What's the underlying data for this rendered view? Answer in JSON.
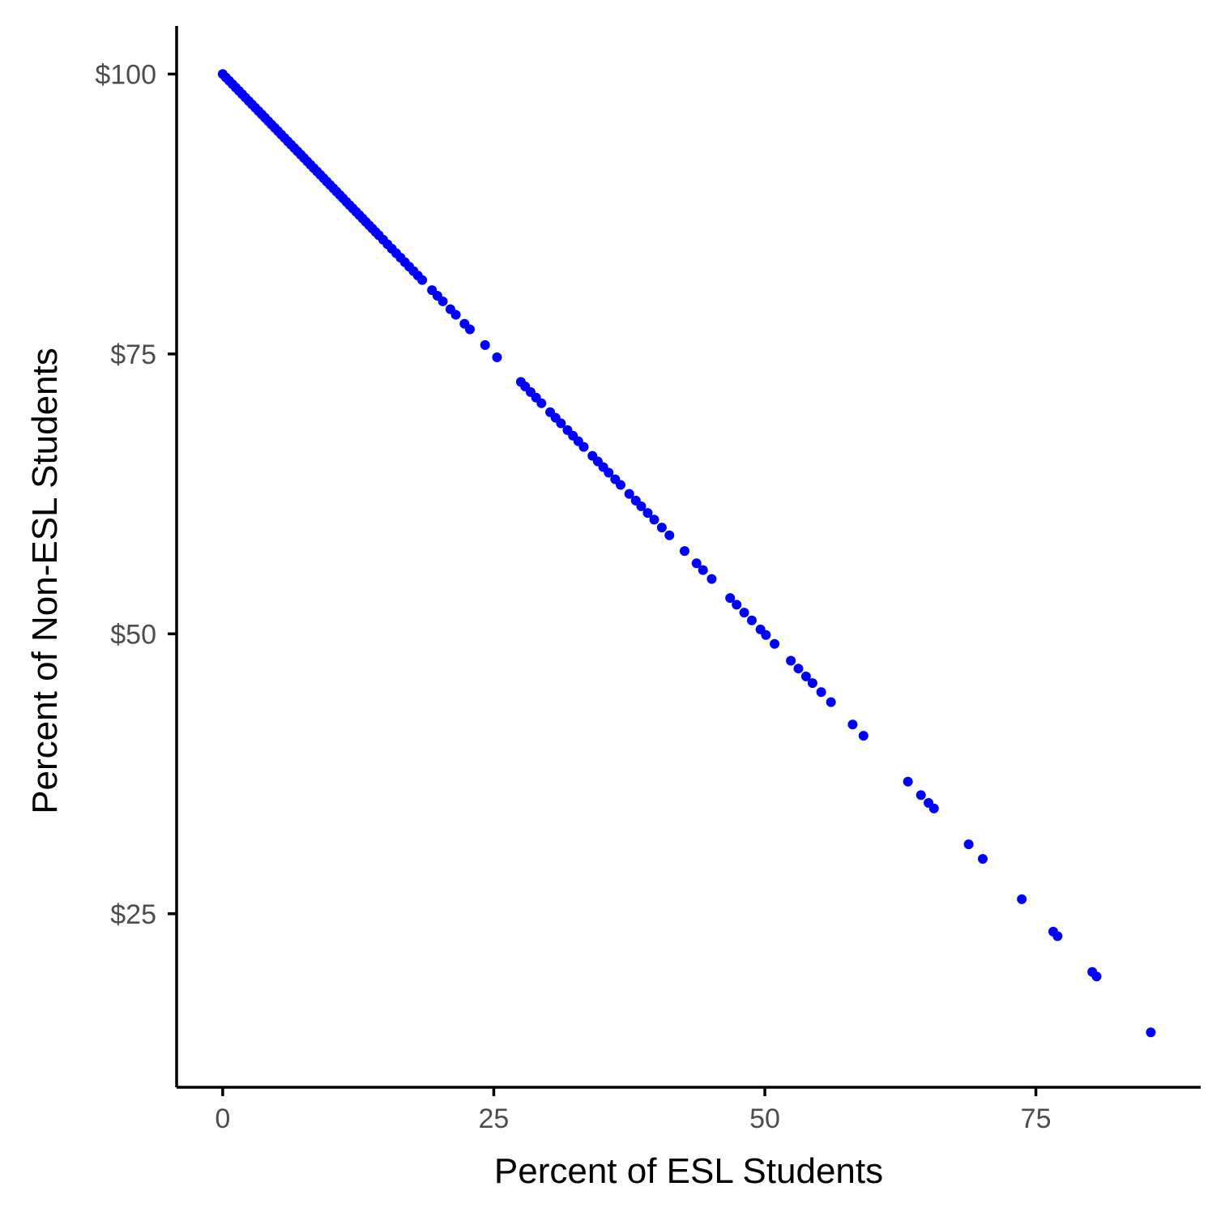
{
  "chart_data": {
    "type": "scatter",
    "xlabel": "Percent of ESL Students",
    "ylabel": "Percent of Non-ESL Students",
    "xlim": [
      -4.25,
      90.2
    ],
    "ylim": [
      9.5,
      104.3
    ],
    "x_ticks": [
      {
        "value": 0,
        "label": "0"
      },
      {
        "value": 25,
        "label": "25"
      },
      {
        "value": 50,
        "label": "50"
      },
      {
        "value": 75,
        "label": "75"
      }
    ],
    "y_ticks": [
      {
        "value": 25,
        "label": "$25"
      },
      {
        "value": 50,
        "label": "$50"
      },
      {
        "value": 75,
        "label": "$75"
      },
      {
        "value": 100,
        "label": "$100"
      }
    ],
    "grid": false,
    "legend": "none",
    "point_color": "#0000ff",
    "points": [
      {
        "x": 0.0,
        "y": 100.0
      },
      {
        "x": 0.3,
        "y": 99.7
      },
      {
        "x": 0.6,
        "y": 99.4
      },
      {
        "x": 0.9,
        "y": 99.1
      },
      {
        "x": 1.2,
        "y": 98.8
      },
      {
        "x": 1.5,
        "y": 98.5
      },
      {
        "x": 1.8,
        "y": 98.2
      },
      {
        "x": 2.1,
        "y": 97.9
      },
      {
        "x": 2.4,
        "y": 97.6
      },
      {
        "x": 2.7,
        "y": 97.3
      },
      {
        "x": 3.0,
        "y": 97.0
      },
      {
        "x": 3.3,
        "y": 96.7
      },
      {
        "x": 3.6,
        "y": 96.4
      },
      {
        "x": 3.9,
        "y": 96.1
      },
      {
        "x": 4.2,
        "y": 95.8
      },
      {
        "x": 4.5,
        "y": 95.5
      },
      {
        "x": 4.8,
        "y": 95.2
      },
      {
        "x": 5.1,
        "y": 94.9
      },
      {
        "x": 5.4,
        "y": 94.6
      },
      {
        "x": 5.7,
        "y": 94.3
      },
      {
        "x": 6.0,
        "y": 94.0
      },
      {
        "x": 6.3,
        "y": 93.7
      },
      {
        "x": 6.6,
        "y": 93.4
      },
      {
        "x": 6.9,
        "y": 93.1
      },
      {
        "x": 7.2,
        "y": 92.8
      },
      {
        "x": 7.5,
        "y": 92.5
      },
      {
        "x": 7.8,
        "y": 92.2
      },
      {
        "x": 8.1,
        "y": 91.9
      },
      {
        "x": 8.4,
        "y": 91.6
      },
      {
        "x": 8.7,
        "y": 91.3
      },
      {
        "x": 9.0,
        "y": 91.0
      },
      {
        "x": 9.3,
        "y": 90.7
      },
      {
        "x": 9.6,
        "y": 90.4
      },
      {
        "x": 9.9,
        "y": 90.1
      },
      {
        "x": 10.2,
        "y": 89.8
      },
      {
        "x": 10.5,
        "y": 89.5
      },
      {
        "x": 10.8,
        "y": 89.2
      },
      {
        "x": 11.1,
        "y": 88.9
      },
      {
        "x": 11.4,
        "y": 88.6
      },
      {
        "x": 11.7,
        "y": 88.3
      },
      {
        "x": 12.0,
        "y": 88.0
      },
      {
        "x": 12.3,
        "y": 87.7
      },
      {
        "x": 12.6,
        "y": 87.4
      },
      {
        "x": 12.9,
        "y": 87.1
      },
      {
        "x": 13.2,
        "y": 86.8
      },
      {
        "x": 13.5,
        "y": 86.5
      },
      {
        "x": 13.8,
        "y": 86.2
      },
      {
        "x": 14.1,
        "y": 85.9
      },
      {
        "x": 14.4,
        "y": 85.6
      },
      {
        "x": 14.8,
        "y": 85.2
      },
      {
        "x": 15.2,
        "y": 84.8
      },
      {
        "x": 15.6,
        "y": 84.4
      },
      {
        "x": 16.0,
        "y": 84.0
      },
      {
        "x": 16.4,
        "y": 83.6
      },
      {
        "x": 16.8,
        "y": 83.2
      },
      {
        "x": 17.2,
        "y": 82.8
      },
      {
        "x": 17.6,
        "y": 82.4
      },
      {
        "x": 18.0,
        "y": 82.0
      },
      {
        "x": 18.4,
        "y": 81.6
      },
      {
        "x": 19.3,
        "y": 80.7
      },
      {
        "x": 19.8,
        "y": 80.2
      },
      {
        "x": 20.3,
        "y": 79.7
      },
      {
        "x": 21.0,
        "y": 79.0
      },
      {
        "x": 21.5,
        "y": 78.5
      },
      {
        "x": 22.3,
        "y": 77.7
      },
      {
        "x": 22.8,
        "y": 77.2
      },
      {
        "x": 24.2,
        "y": 75.8
      },
      {
        "x": 25.3,
        "y": 74.7
      },
      {
        "x": 27.5,
        "y": 72.5
      },
      {
        "x": 27.9,
        "y": 72.1
      },
      {
        "x": 28.4,
        "y": 71.6
      },
      {
        "x": 28.9,
        "y": 71.1
      },
      {
        "x": 29.4,
        "y": 70.6
      },
      {
        "x": 30.2,
        "y": 69.8
      },
      {
        "x": 30.7,
        "y": 69.3
      },
      {
        "x": 31.2,
        "y": 68.8
      },
      {
        "x": 31.8,
        "y": 68.2
      },
      {
        "x": 32.3,
        "y": 67.7
      },
      {
        "x": 32.8,
        "y": 67.2
      },
      {
        "x": 33.3,
        "y": 66.7
      },
      {
        "x": 34.1,
        "y": 65.9
      },
      {
        "x": 34.6,
        "y": 65.4
      },
      {
        "x": 35.1,
        "y": 64.9
      },
      {
        "x": 35.6,
        "y": 64.4
      },
      {
        "x": 36.2,
        "y": 63.8
      },
      {
        "x": 36.7,
        "y": 63.3
      },
      {
        "x": 37.5,
        "y": 62.5
      },
      {
        "x": 38.1,
        "y": 61.9
      },
      {
        "x": 38.6,
        "y": 61.4
      },
      {
        "x": 39.2,
        "y": 60.8
      },
      {
        "x": 39.8,
        "y": 60.2
      },
      {
        "x": 40.5,
        "y": 59.5
      },
      {
        "x": 41.2,
        "y": 58.8
      },
      {
        "x": 42.6,
        "y": 57.4
      },
      {
        "x": 43.7,
        "y": 56.3
      },
      {
        "x": 44.3,
        "y": 55.7
      },
      {
        "x": 45.1,
        "y": 54.9
      },
      {
        "x": 46.8,
        "y": 53.2
      },
      {
        "x": 47.4,
        "y": 52.6
      },
      {
        "x": 48.1,
        "y": 51.9
      },
      {
        "x": 48.8,
        "y": 51.2
      },
      {
        "x": 49.6,
        "y": 50.4
      },
      {
        "x": 50.1,
        "y": 49.9
      },
      {
        "x": 50.9,
        "y": 49.1
      },
      {
        "x": 52.4,
        "y": 47.6
      },
      {
        "x": 53.1,
        "y": 46.9
      },
      {
        "x": 53.8,
        "y": 46.2
      },
      {
        "x": 54.4,
        "y": 45.6
      },
      {
        "x": 55.2,
        "y": 44.8
      },
      {
        "x": 56.1,
        "y": 43.9
      },
      {
        "x": 58.1,
        "y": 41.9
      },
      {
        "x": 59.1,
        "y": 40.9
      },
      {
        "x": 63.2,
        "y": 36.8
      },
      {
        "x": 64.4,
        "y": 35.6
      },
      {
        "x": 65.1,
        "y": 34.9
      },
      {
        "x": 65.6,
        "y": 34.4
      },
      {
        "x": 68.8,
        "y": 31.2
      },
      {
        "x": 70.1,
        "y": 29.9
      },
      {
        "x": 73.7,
        "y": 26.3
      },
      {
        "x": 76.6,
        "y": 23.4
      },
      {
        "x": 77.0,
        "y": 23.0
      },
      {
        "x": 80.2,
        "y": 19.8
      },
      {
        "x": 80.6,
        "y": 19.4
      },
      {
        "x": 85.6,
        "y": 14.4
      }
    ]
  }
}
